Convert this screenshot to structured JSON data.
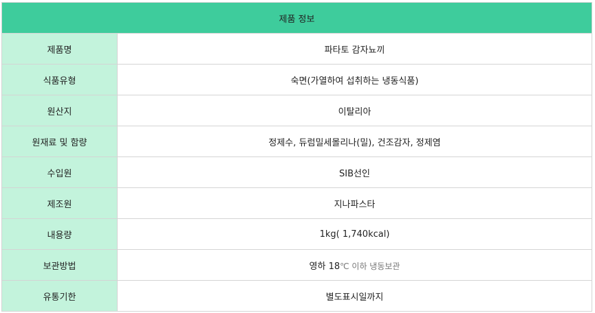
{
  "title": "제품 정보",
  "rows": [
    {
      "label": "제품명",
      "value": "파타토 감자뇨끼"
    },
    {
      "label": "식품유형",
      "value": "숙면(가열하여 섭취하는 냉동식품)"
    },
    {
      "label": "원산지",
      "value": "이탈리아"
    },
    {
      "label": "원재료 및 함량",
      "value": "정제수, 듀럼밀세몰리나(밀), 건조감자, 정제염"
    },
    {
      "label": "수입원",
      "value": "SIB선인"
    },
    {
      "label": "제조원",
      "value": "지나파스타"
    },
    {
      "label": "내용량",
      "value": "1kg( 1,740kcal)"
    },
    {
      "label": "보관방법",
      "value": "영하 18",
      "value_suffix": "℃ 이하 냉동보관"
    },
    {
      "label": "유통기한",
      "value": "별도표시일까지"
    }
  ],
  "colors": {
    "header": "#3ecc9c",
    "label_bg": "#c3f3dc",
    "border": "#d4d4d4"
  }
}
